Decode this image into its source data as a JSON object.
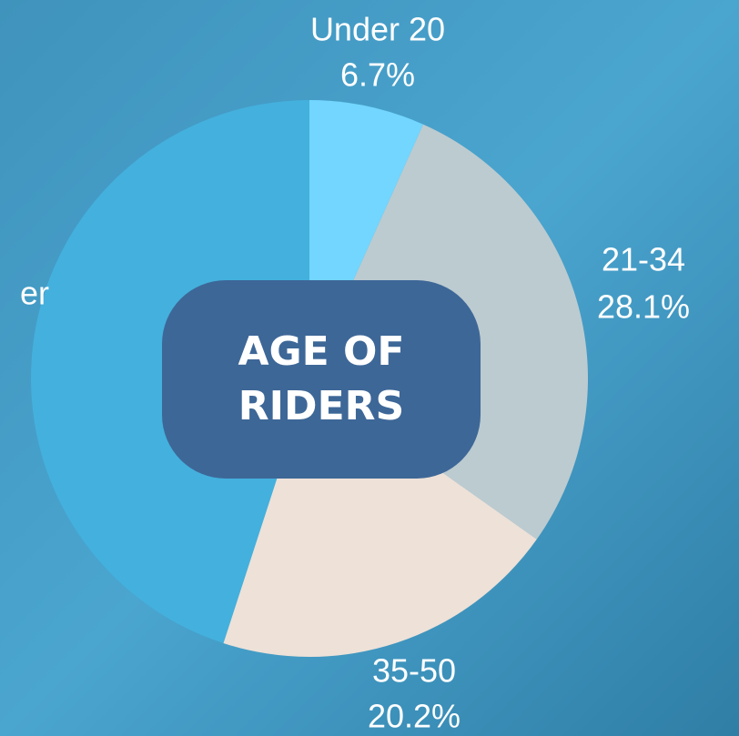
{
  "chart_data": {
    "type": "pie",
    "title": "AGE OF RIDERS",
    "categories": [
      "Under 20",
      "21-34",
      "35-50",
      "er"
    ],
    "values": [
      6.7,
      28.1,
      20.2,
      45.0
    ],
    "value_labels": [
      "6.7%",
      "28.1%",
      "20.2%",
      null
    ],
    "colors": [
      "#72d6fe",
      "#bccbd0",
      "#ede1d8",
      "#44b0dd"
    ]
  }
}
